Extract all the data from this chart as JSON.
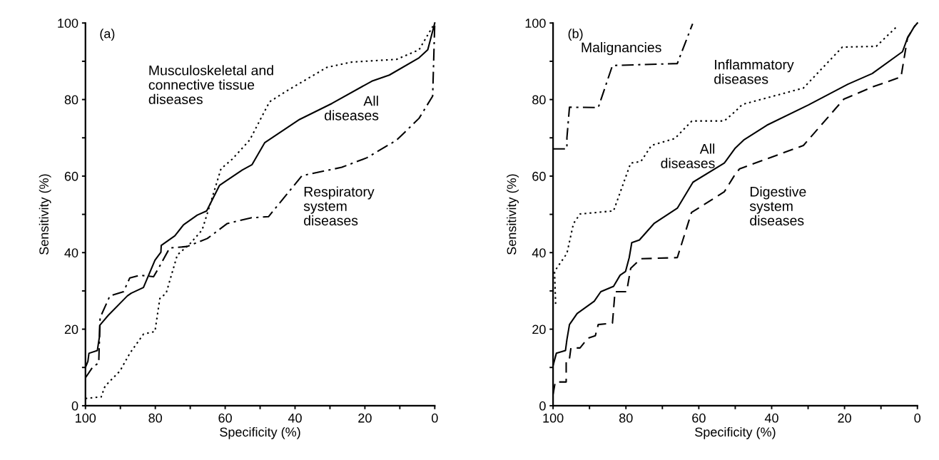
{
  "chart_data": [
    {
      "type": "line",
      "title": "(a)",
      "xlabel": "Specificity (%)",
      "ylabel": "Sensitivity (%)",
      "xlim": [
        100,
        0
      ],
      "ylim": [
        0,
        100
      ],
      "xticks": [
        100,
        {
          "value": 90,
          "label": null
        },
        80,
        {
          "value": 70,
          "label": null
        },
        60,
        {
          "value": 50,
          "label": null
        },
        40,
        {
          "value": 30,
          "label": null
        },
        20,
        {
          "value": 10,
          "label": null
        },
        0
      ],
      "yticks": [
        0,
        {
          "value": 10,
          "label": null
        },
        20,
        {
          "value": 30,
          "label": null
        },
        40,
        {
          "value": 50,
          "label": null
        },
        60,
        {
          "value": 70,
          "label": null
        },
        80,
        {
          "value": 90,
          "label": null
        },
        100
      ],
      "grid": false,
      "legend": false,
      "marker": "none",
      "series": [
        {
          "name": "All\ndiseases",
          "line_style": "solid",
          "color": "#000000",
          "x": [
            100,
            99.3,
            99,
            96.6,
            96,
            95.9,
            93.4,
            88,
            86.9,
            83.4,
            80.1,
            78.4,
            78.3,
            74.4,
            71.9,
            68,
            65.3,
            61.6,
            55.1,
            52.3,
            48.7,
            38.7,
            29.4,
            18,
            13,
            4.5,
            2,
            0
          ],
          "values": [
            10,
            11.6,
            13.7,
            14.4,
            18,
            21,
            23.7,
            28.7,
            29.4,
            30.9,
            38,
            40.1,
            41.9,
            44.4,
            47.3,
            49.8,
            50.9,
            57.6,
            61.6,
            63,
            68.7,
            74.8,
            79,
            84.8,
            86.4,
            90.9,
            93,
            100
          ]
        },
        {
          "name": "Musculoskeletal and\nconnective tissue\ndiseases",
          "line_style": "dotted",
          "color": "#000000",
          "x": [
            100,
            95.5,
            94.4,
            90.1,
            87.3,
            83.4,
            80.1,
            78.7,
            76.9,
            73.7,
            70.1,
            66.6,
            63.7,
            61.2,
            58,
            53,
            47.3,
            42.3,
            30.9,
            23.7,
            10.9,
            4.5,
            0
          ],
          "values": [
            1.9,
            2.3,
            5.1,
            9.1,
            13.7,
            18.7,
            19.4,
            28,
            29.4,
            39.4,
            42.3,
            45.9,
            54.4,
            61.9,
            64.4,
            69.4,
            79.4,
            82.3,
            88.4,
            89.8,
            90.5,
            93,
            100
          ]
        },
        {
          "name": "Respiratory\nsystem\ndiseases",
          "line_style": "dashdot",
          "color": "#000000",
          "x": [
            100,
            98,
            96.2,
            95.8,
            93,
            89.1,
            87.3,
            84.4,
            80.5,
            79.1,
            75.9,
            70.9,
            65.1,
            59.4,
            52.6,
            47.6,
            38,
            26.6,
            19.4,
            10.9,
            4.5,
            0.6,
            0
          ],
          "values": [
            7.3,
            10,
            11.2,
            23,
            28.7,
            29.8,
            33.4,
            34.1,
            33.7,
            35.9,
            41.2,
            41.6,
            43.7,
            47.6,
            49.1,
            49.4,
            60.1,
            62.3,
            64.8,
            69.4,
            75.1,
            80.9,
            100
          ]
        }
      ]
    },
    {
      "type": "line",
      "title": "(b)",
      "xlabel": "Specificity (%)",
      "ylabel": "Sensitivity (%)",
      "xlim": [
        100,
        0
      ],
      "ylim": [
        0,
        100
      ],
      "xticks": [
        100,
        {
          "value": 90,
          "label": null
        },
        80,
        {
          "value": 70,
          "label": null
        },
        60,
        {
          "value": 50,
          "label": null
        },
        40,
        {
          "value": 30,
          "label": null
        },
        20,
        {
          "value": 10,
          "label": null
        },
        0
      ],
      "yticks": [
        0,
        {
          "value": 10,
          "label": null
        },
        20,
        {
          "value": 30,
          "label": null
        },
        40,
        {
          "value": 50,
          "label": null
        },
        60,
        {
          "value": 70,
          "label": null
        },
        80,
        {
          "value": 90,
          "label": null
        },
        100
      ],
      "grid": false,
      "legend": false,
      "marker": "none",
      "series": [
        {
          "name": "Malignancies",
          "line_style": "dashdot",
          "color": "#000000",
          "x": [
            100,
            96.2,
            96.2,
            95.5,
            87.6,
            83.7,
            65.9,
            61.7
          ],
          "values": [
            67.1,
            67.1,
            70,
            78,
            77.9,
            88.9,
            89.4,
            99.8
          ]
        },
        {
          "name": "Inflammatory\ndiseases",
          "line_style": "dotted",
          "color": "#000000",
          "x": [
            99.3,
            99.6,
            96.2,
            94.4,
            92.6,
            83.4,
            78.7,
            75.9,
            73,
            66.6,
            61.9,
            53,
            50,
            48.1,
            31.3,
            20.6,
            11.3,
            5.6
          ],
          "values": [
            26.6,
            35.1,
            39.8,
            47.6,
            50.1,
            50.9,
            63.4,
            63.8,
            68,
            69.8,
            74.4,
            74.4,
            76.9,
            78.7,
            83,
            93.7,
            93.9,
            99.1
          ]
        },
        {
          "name": "All\ndiseases",
          "line_style": "solid",
          "color": "#000000",
          "x": [
            100,
            99.1,
            96.6,
            96.2,
            95.5,
            93.4,
            88.7,
            86.9,
            83.4,
            81.6,
            80.1,
            79.1,
            78.4,
            76.3,
            72.3,
            65.9,
            61.6,
            53,
            50,
            47.7,
            41.3,
            29.9,
            19.1,
            12.4,
            4.1,
            2.7,
            0.9,
            0
          ],
          "values": [
            10.5,
            13.7,
            14.4,
            17.3,
            21.2,
            24.1,
            27.3,
            29.8,
            31.2,
            34.1,
            35.1,
            38.7,
            42.6,
            43.3,
            47.6,
            51.6,
            58.4,
            63.4,
            67.3,
            69.4,
            73.3,
            78.6,
            84,
            86.8,
            92.5,
            96.1,
            99,
            100
          ]
        },
        {
          "name": "Digestive\nsystem\ndiseases",
          "line_style": "dashed",
          "color": "#000000",
          "x": [
            100,
            99.4,
            96.4,
            96.4,
            95.5,
            95.1,
            92.6,
            90.5,
            88.4,
            87.6,
            83.7,
            83,
            79.8,
            78.7,
            75.9,
            65.9,
            62,
            53,
            50,
            48.8,
            31.3,
            20.2,
            12,
            4.5,
            2.7,
            0.6
          ],
          "values": [
            3,
            6.2,
            6.2,
            11.9,
            12.3,
            15.1,
            15.1,
            17.6,
            18.3,
            21.2,
            21.6,
            29.8,
            29.8,
            35.9,
            38.4,
            38.7,
            50.5,
            55.9,
            60.5,
            61.9,
            68,
            80.1,
            83.4,
            85.9,
            96.2,
            99.4
          ]
        }
      ]
    }
  ]
}
